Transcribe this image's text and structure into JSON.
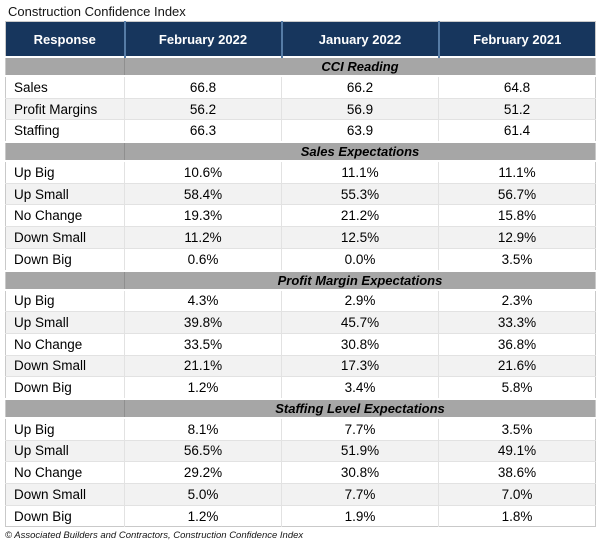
{
  "title": "Construction Confidence Index",
  "footer": "© Associated Builders and Contractors, Construction Confidence Index",
  "colors": {
    "header_bg": "#17365d",
    "header_text": "#ffffff",
    "header_divider": "#567ca6",
    "section_band_bg": "#a6a6a6",
    "alt_row_bg": "#f2f2f2",
    "row_border": "#e2e2e2"
  },
  "chart_data": {
    "type": "table",
    "title": "Construction Confidence Index",
    "source": "© Associated Builders and Contractors, Construction Confidence Index",
    "columns": [
      "Response",
      "February 2022",
      "January 2022",
      "February 2021"
    ],
    "sections": [
      {
        "title": "CCI Reading",
        "rows": [
          {
            "label": "Sales",
            "values": [
              "66.8",
              "66.2",
              "64.8"
            ]
          },
          {
            "label": "Profit Margins",
            "values": [
              "56.2",
              "56.9",
              "51.2"
            ]
          },
          {
            "label": "Staffing",
            "values": [
              "66.3",
              "63.9",
              "61.4"
            ]
          }
        ]
      },
      {
        "title": "Sales Expectations",
        "rows": [
          {
            "label": "Up Big",
            "values": [
              "10.6%",
              "11.1%",
              "11.1%"
            ]
          },
          {
            "label": "Up Small",
            "values": [
              "58.4%",
              "55.3%",
              "56.7%"
            ]
          },
          {
            "label": "No Change",
            "values": [
              "19.3%",
              "21.2%",
              "15.8%"
            ]
          },
          {
            "label": "Down Small",
            "values": [
              "11.2%",
              "12.5%",
              "12.9%"
            ]
          },
          {
            "label": "Down Big",
            "values": [
              "0.6%",
              "0.0%",
              "3.5%"
            ]
          }
        ]
      },
      {
        "title": "Profit Margin Expectations",
        "rows": [
          {
            "label": "Up Big",
            "values": [
              "4.3%",
              "2.9%",
              "2.3%"
            ]
          },
          {
            "label": "Up Small",
            "values": [
              "39.8%",
              "45.7%",
              "33.3%"
            ]
          },
          {
            "label": "No Change",
            "values": [
              "33.5%",
              "30.8%",
              "36.8%"
            ]
          },
          {
            "label": "Down Small",
            "values": [
              "21.1%",
              "17.3%",
              "21.6%"
            ]
          },
          {
            "label": "Down Big",
            "values": [
              "1.2%",
              "3.4%",
              "5.8%"
            ]
          }
        ]
      },
      {
        "title": "Staffing Level Expectations",
        "rows": [
          {
            "label": "Up Big",
            "values": [
              "8.1%",
              "7.7%",
              "3.5%"
            ]
          },
          {
            "label": "Up Small",
            "values": [
              "56.5%",
              "51.9%",
              "49.1%"
            ]
          },
          {
            "label": "No Change",
            "values": [
              "29.2%",
              "30.8%",
              "38.6%"
            ]
          },
          {
            "label": "Down Small",
            "values": [
              "5.0%",
              "7.7%",
              "7.0%"
            ]
          },
          {
            "label": "Down Big",
            "values": [
              "1.2%",
              "1.9%",
              "1.8%"
            ]
          }
        ]
      }
    ]
  }
}
